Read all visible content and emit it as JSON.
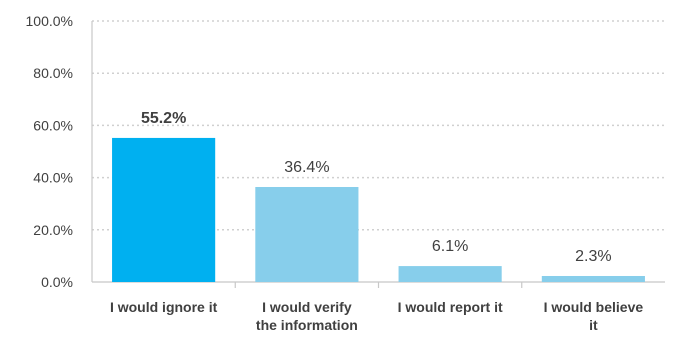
{
  "chart_data": {
    "type": "bar",
    "categories": [
      [
        "I would ignore it"
      ],
      [
        "I would verify",
        "the information"
      ],
      [
        "I would report it"
      ],
      [
        "I would believe",
        "it"
      ]
    ],
    "values": [
      55.2,
      36.4,
      6.1,
      2.3
    ],
    "data_labels": [
      "55.2%",
      "36.4%",
      "6.1%",
      "2.3%"
    ],
    "data_label_bold": [
      true,
      false,
      false,
      false
    ],
    "bar_colors": [
      "#00b0f0",
      "#87ceeb",
      "#87ceeb",
      "#87ceeb"
    ],
    "ylim": [
      0,
      100
    ],
    "yticks": [
      0,
      20,
      40,
      60,
      80,
      100
    ],
    "ytick_labels": [
      "0.0%",
      "20.0%",
      "40.0%",
      "60.0%",
      "80.0%",
      "100.0%"
    ],
    "grid": true,
    "title": "",
    "xlabel": "",
    "ylabel": ""
  }
}
